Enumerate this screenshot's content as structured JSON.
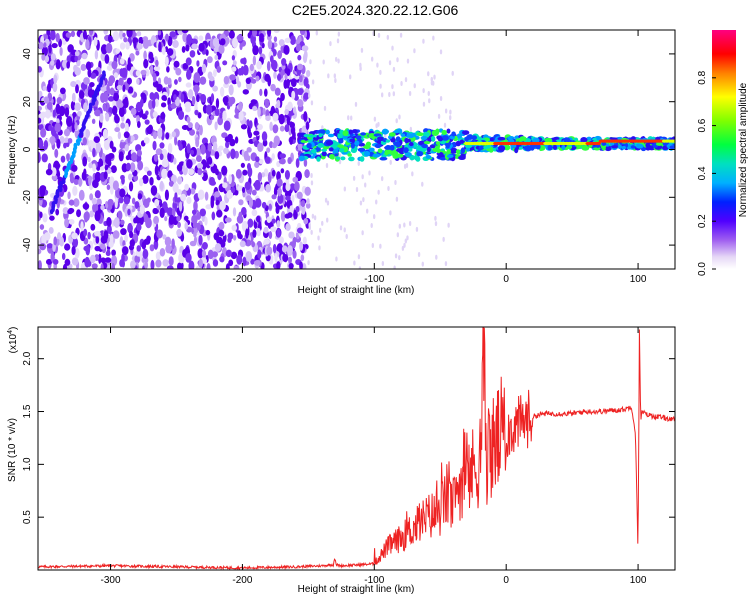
{
  "title": "C2E5.2024.320.22.12.G06",
  "colors": {
    "snr_line": "#ee2222",
    "axis": "#000000"
  },
  "chart_data": [
    {
      "type": "heatmap",
      "xlabel": "Height of straight line (km)",
      "ylabel": "Frequency (Hz)",
      "xlim": [
        -355,
        128
      ],
      "ylim": [
        -50,
        50
      ],
      "xticks": [
        -300,
        -200,
        -100,
        0,
        100
      ],
      "yticks": [
        -40,
        -20,
        0,
        20,
        40
      ],
      "colorbar": {
        "label": "Normalized spectral amplitude",
        "range": [
          0,
          1
        ],
        "ticks": [
          "0.0",
          "0.2",
          "0.4",
          "0.6",
          "0.8"
        ]
      },
      "grid": false
    },
    {
      "type": "line",
      "xlabel": "Height of straight line (km)",
      "ylabel": "SNR (10 * v/v)",
      "y_multiplier": "(x10",
      "y_multiplier_exp": "4",
      "xlim": [
        -355,
        128
      ],
      "ylim": [
        0,
        2.3
      ],
      "xticks": [
        -300,
        -200,
        -100,
        0,
        100
      ],
      "yticks": [
        "0.5",
        "1.0",
        "1.5",
        "2.0"
      ],
      "series": [
        {
          "x": [
            -355,
            -300,
            -250,
            -200,
            -160,
            -140,
            -131,
            -130,
            -129,
            -125,
            -110,
            -100,
            -90,
            -80,
            -70,
            -60,
            -50,
            -45,
            -40,
            -35,
            -30,
            -25,
            -20,
            -17,
            -15,
            -10,
            -5,
            0,
            5,
            10,
            15,
            20,
            25,
            30,
            40,
            50,
            60,
            70,
            80,
            90,
            95,
            98,
            100,
            101,
            102,
            103,
            105,
            110,
            115,
            120,
            128
          ],
          "y": [
            0.03,
            0.04,
            0.03,
            0.02,
            0.03,
            0.04,
            0.05,
            0.12,
            0.05,
            0.04,
            0.05,
            0.06,
            0.22,
            0.3,
            0.4,
            0.5,
            0.55,
            0.7,
            0.6,
            0.85,
            0.9,
            0.95,
            1.05,
            2.0,
            1.1,
            1.15,
            1.25,
            1.3,
            1.35,
            1.38,
            1.42,
            1.45,
            1.47,
            1.48,
            1.48,
            1.48,
            1.5,
            1.5,
            1.51,
            1.52,
            1.55,
            1.3,
            0.15,
            2.3,
            1.4,
            1.5,
            1.48,
            1.46,
            1.45,
            1.44,
            1.42
          ]
        }
      ]
    }
  ]
}
